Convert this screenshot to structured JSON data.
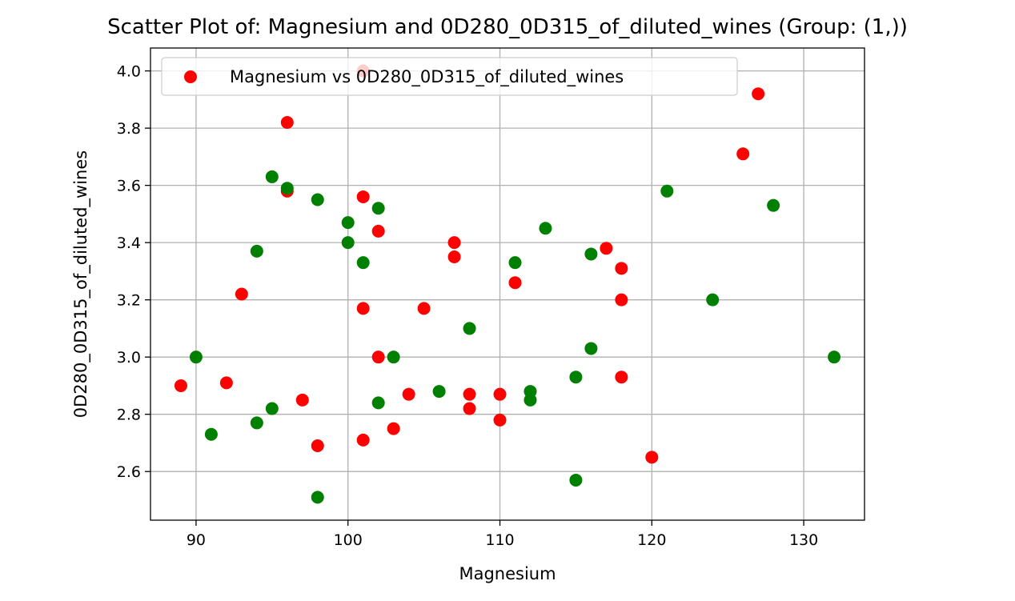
{
  "chart_data": {
    "type": "scatter",
    "title": "Scatter Plot of: Magnesium and 0D280_0D315_of_diluted_wines (Group: (1,))",
    "xlabel": "Magnesium",
    "ylabel": "0D280_0D315_of_diluted_wines",
    "xlim": [
      87,
      134
    ],
    "ylim": [
      2.43,
      4.08
    ],
    "xticks": [
      90,
      100,
      110,
      120,
      130
    ],
    "yticks": [
      2.6,
      2.8,
      3.0,
      3.2,
      3.4,
      3.6,
      3.8,
      4.0
    ],
    "xtick_labels": [
      "90",
      "100",
      "110",
      "120",
      "130"
    ],
    "ytick_labels": [
      "2.6",
      "2.8",
      "3.0",
      "3.2",
      "3.4",
      "3.6",
      "3.8",
      "4.0"
    ],
    "grid": true,
    "legend": {
      "placement": "top-left",
      "entries": [
        "Magnesium vs 0D280_0D315_of_diluted_wines"
      ]
    },
    "series": [
      {
        "name": "Magnesium vs 0D280_0D315_of_diluted_wines",
        "color": "#ff0000",
        "points": [
          [
            89,
            2.9
          ],
          [
            92,
            2.91
          ],
          [
            93,
            3.22
          ],
          [
            96,
            3.82
          ],
          [
            96,
            3.58
          ],
          [
            97,
            2.85
          ],
          [
            98,
            2.69
          ],
          [
            101,
            4.0
          ],
          [
            101,
            3.56
          ],
          [
            101,
            3.17
          ],
          [
            101,
            2.71
          ],
          [
            102,
            3.44
          ],
          [
            102,
            3.0
          ],
          [
            103,
            2.75
          ],
          [
            104,
            2.87
          ],
          [
            105,
            3.17
          ],
          [
            107,
            3.4
          ],
          [
            107,
            3.35
          ],
          [
            108,
            2.87
          ],
          [
            108,
            2.82
          ],
          [
            110,
            2.87
          ],
          [
            110,
            2.78
          ],
          [
            111,
            3.26
          ],
          [
            117,
            3.38
          ],
          [
            118,
            3.31
          ],
          [
            118,
            3.2
          ],
          [
            118,
            2.93
          ],
          [
            120,
            2.65
          ],
          [
            126,
            3.71
          ],
          [
            127,
            3.92
          ]
        ]
      },
      {
        "color": "#008000",
        "points": [
          [
            90,
            3.0
          ],
          [
            91,
            2.73
          ],
          [
            94,
            3.37
          ],
          [
            94,
            2.77
          ],
          [
            95,
            3.63
          ],
          [
            95,
            2.82
          ],
          [
            96,
            3.59
          ],
          [
            98,
            3.55
          ],
          [
            98,
            2.51
          ],
          [
            100,
            3.47
          ],
          [
            100,
            3.4
          ],
          [
            101,
            3.33
          ],
          [
            102,
            3.52
          ],
          [
            102,
            2.84
          ],
          [
            103,
            3.0
          ],
          [
            106,
            2.88
          ],
          [
            108,
            3.1
          ],
          [
            111,
            3.33
          ],
          [
            112,
            2.88
          ],
          [
            112,
            2.85
          ],
          [
            113,
            3.45
          ],
          [
            115,
            2.93
          ],
          [
            115,
            2.57
          ],
          [
            116,
            3.36
          ],
          [
            116,
            3.03
          ],
          [
            121,
            3.58
          ],
          [
            124,
            3.2
          ],
          [
            128,
            3.53
          ],
          [
            132,
            3.0
          ]
        ]
      }
    ]
  }
}
